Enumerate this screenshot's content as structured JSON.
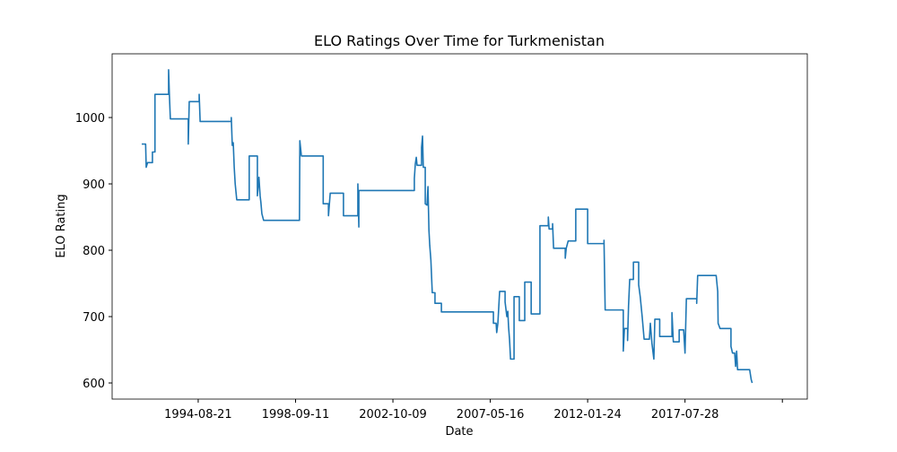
{
  "chart_data": {
    "type": "line",
    "title": "ELO Ratings Over Time for Turkmenistan",
    "xlabel": "Date",
    "ylabel": "ELO Rating",
    "color": "#1f77b4",
    "x": [
      21,
      23,
      23.3,
      24,
      26.5,
      26.5,
      27.8,
      27.8,
      34.8,
      34.8,
      35.2,
      35.7,
      44.9,
      44.9,
      45.4,
      50.5,
      50.5,
      51,
      67,
      67,
      67.5,
      68,
      68.5,
      69,
      69.8,
      76.2,
      76.2,
      80.4,
      80.4,
      81.2,
      81.8,
      82.2,
      82.7,
      83.6,
      102,
      102.2,
      103,
      114.2,
      114.2,
      116.9,
      116.9,
      117.8,
      124.6,
      124.6,
      132,
      132,
      132.5,
      132.5,
      161,
      161,
      161.5,
      162,
      162.4,
      164.7,
      164.7,
      165.2,
      165.6,
      166.6,
      166.6,
      167.5,
      168,
      168.5,
      168.9,
      169.5,
      170.2,
      171.6,
      171.6,
      174.9,
      174.9,
      201.6,
      201.6,
      203,
      203.3,
      203.9,
      204.8,
      207.6,
      207.6,
      208.5,
      209,
      209.4,
      209.9,
      210.4,
      212.2,
      212.2,
      214.9,
      214.9,
      217.7,
      217.7,
      221,
      221,
      225.5,
      225.5,
      229.8,
      229.8,
      230.2,
      232,
      232,
      232.5,
      238.5,
      238.5,
      239,
      240,
      243.9,
      243.9,
      250,
      250,
      258.4,
      258.4,
      259,
      268.3,
      268.3,
      268.9,
      270.5,
      270.5,
      271,
      271.6,
      273.5,
      273.5,
      276.2,
      276.2,
      277,
      278,
      279,
      281.7,
      282.2,
      283,
      284,
      284.5,
      287,
      287,
      293.3,
      293.3,
      294,
      297,
      297,
      299.3,
      300,
      300.7,
      306,
      306,
      306.5,
      316,
      316.8,
      317,
      318,
      323.6,
      323.6,
      324.4,
      325.5,
      326,
      326.5,
      327,
      333.2,
      334,
      334.5
    ],
    "values": [
      960,
      960,
      925,
      932,
      932,
      948,
      948,
      1035,
      1035,
      1072,
      1035,
      998,
      998,
      960,
      1024,
      1024,
      1035,
      994,
      994,
      1000,
      958,
      962,
      925,
      900,
      876,
      876,
      942,
      942,
      882,
      910,
      882,
      872,
      855,
      845,
      845,
      965,
      942,
      942,
      870,
      870,
      852,
      886,
      886,
      852,
      852,
      900,
      835,
      890,
      890,
      908,
      930,
      940,
      928,
      928,
      955,
      972,
      925,
      925,
      870,
      868,
      896,
      830,
      808,
      785,
      736,
      736,
      720,
      720,
      707,
      707,
      690,
      690,
      676,
      690,
      738,
      738,
      722,
      700,
      708,
      684,
      665,
      636,
      636,
      730,
      730,
      694,
      694,
      752,
      752,
      704,
      704,
      837,
      837,
      850,
      832,
      832,
      840,
      803,
      803,
      788,
      803,
      814,
      814,
      862,
      862,
      810,
      810,
      815,
      710,
      710,
      648,
      682,
      682,
      664,
      716,
      756,
      756,
      782,
      782,
      748,
      730,
      700,
      666,
      666,
      690,
      660,
      636,
      696,
      696,
      670,
      670,
      706,
      662,
      662,
      680,
      680,
      645,
      727,
      727,
      720,
      762,
      762,
      738,
      690,
      682,
      682,
      655,
      645,
      645,
      625,
      648,
      620,
      620,
      605,
      600
    ],
    "xlim": [
      5.8,
      362.8
    ],
    "ylim": [
      575.7,
      1096
    ],
    "xticks": [
      {
        "value": 50,
        "label": "1994-08-21"
      },
      {
        "value": 100,
        "label": "1998-09-11"
      },
      {
        "value": 150,
        "label": "2002-10-09"
      },
      {
        "value": 200,
        "label": "2007-05-16"
      },
      {
        "value": 250,
        "label": "2012-01-24"
      },
      {
        "value": 300,
        "label": "2017-07-28"
      },
      {
        "value": 350,
        "label": null
      }
    ],
    "yticks": [
      600,
      700,
      800,
      900,
      1000
    ]
  }
}
